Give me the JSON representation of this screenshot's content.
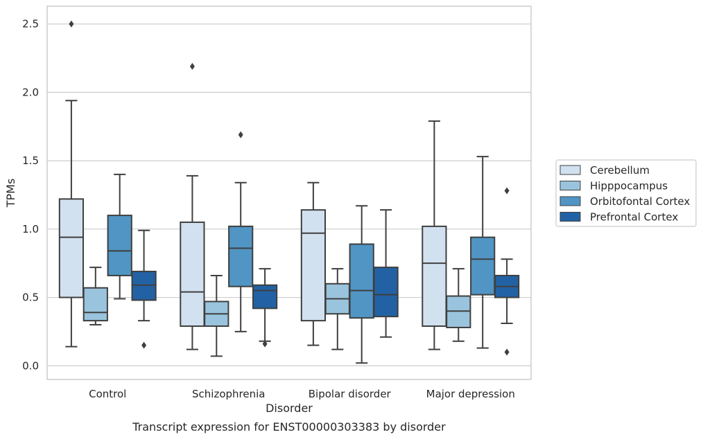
{
  "chart_data": {
    "type": "box",
    "xlabel": "Disorder",
    "ylabel": "TPMs",
    "caption": "Transcript expression for ENST00000303383 by disorder",
    "ylim": [
      -0.1,
      2.63
    ],
    "yticks": [
      "0.0",
      "0.5",
      "1.0",
      "1.5",
      "2.0",
      "2.5"
    ],
    "grid": true,
    "legend_position": "right",
    "categories": [
      "Control",
      "Schizophrenia",
      "Bipolar disorder",
      "Major depression"
    ],
    "series": [
      {
        "name": "Cerebellum",
        "color": "#d2e1f0",
        "boxes": [
          {
            "whislo": 0.14,
            "q1": 0.5,
            "med": 0.94,
            "q3": 1.22,
            "whishi": 1.94,
            "fliers": [
              2.5
            ]
          },
          {
            "whislo": 0.12,
            "q1": 0.29,
            "med": 0.54,
            "q3": 1.05,
            "whishi": 1.39,
            "fliers": [
              2.19
            ]
          },
          {
            "whislo": 0.15,
            "q1": 0.33,
            "med": 0.97,
            "q3": 1.14,
            "whishi": 1.34,
            "fliers": []
          },
          {
            "whislo": 0.12,
            "q1": 0.29,
            "med": 0.75,
            "q3": 1.02,
            "whishi": 1.79,
            "fliers": []
          }
        ]
      },
      {
        "name": "Hipppocampus",
        "color": "#9ac4dd",
        "boxes": [
          {
            "whislo": 0.3,
            "q1": 0.33,
            "med": 0.39,
            "q3": 0.57,
            "whishi": 0.72,
            "fliers": []
          },
          {
            "whislo": 0.07,
            "q1": 0.29,
            "med": 0.38,
            "q3": 0.47,
            "whishi": 0.66,
            "fliers": []
          },
          {
            "whislo": 0.12,
            "q1": 0.38,
            "med": 0.49,
            "q3": 0.6,
            "whishi": 0.71,
            "fliers": []
          },
          {
            "whislo": 0.18,
            "q1": 0.28,
            "med": 0.4,
            "q3": 0.51,
            "whishi": 0.71,
            "fliers": []
          }
        ]
      },
      {
        "name": "Orbitofontal Cortex",
        "color": "#5095c4",
        "boxes": [
          {
            "whislo": 0.49,
            "q1": 0.66,
            "med": 0.84,
            "q3": 1.1,
            "whishi": 1.4,
            "fliers": []
          },
          {
            "whislo": 0.25,
            "q1": 0.58,
            "med": 0.86,
            "q3": 1.02,
            "whishi": 1.34,
            "fliers": [
              1.69
            ]
          },
          {
            "whislo": 0.02,
            "q1": 0.35,
            "med": 0.55,
            "q3": 0.89,
            "whishi": 1.17,
            "fliers": []
          },
          {
            "whislo": 0.13,
            "q1": 0.52,
            "med": 0.78,
            "q3": 0.94,
            "whishi": 1.53,
            "fliers": []
          }
        ]
      },
      {
        "name": "Prefrontal Cortex",
        "color": "#2262a4",
        "boxes": [
          {
            "whislo": 0.33,
            "q1": 0.48,
            "med": 0.59,
            "q3": 0.69,
            "whishi": 0.99,
            "fliers": [
              0.15
            ]
          },
          {
            "whislo": 0.18,
            "q1": 0.42,
            "med": 0.55,
            "q3": 0.59,
            "whishi": 0.71,
            "fliers": [
              0.16
            ]
          },
          {
            "whislo": 0.21,
            "q1": 0.36,
            "med": 0.52,
            "q3": 0.72,
            "whishi": 1.14,
            "fliers": []
          },
          {
            "whislo": 0.31,
            "q1": 0.5,
            "med": 0.58,
            "q3": 0.66,
            "whishi": 0.78,
            "fliers": [
              0.1,
              1.28
            ]
          }
        ]
      }
    ]
  }
}
